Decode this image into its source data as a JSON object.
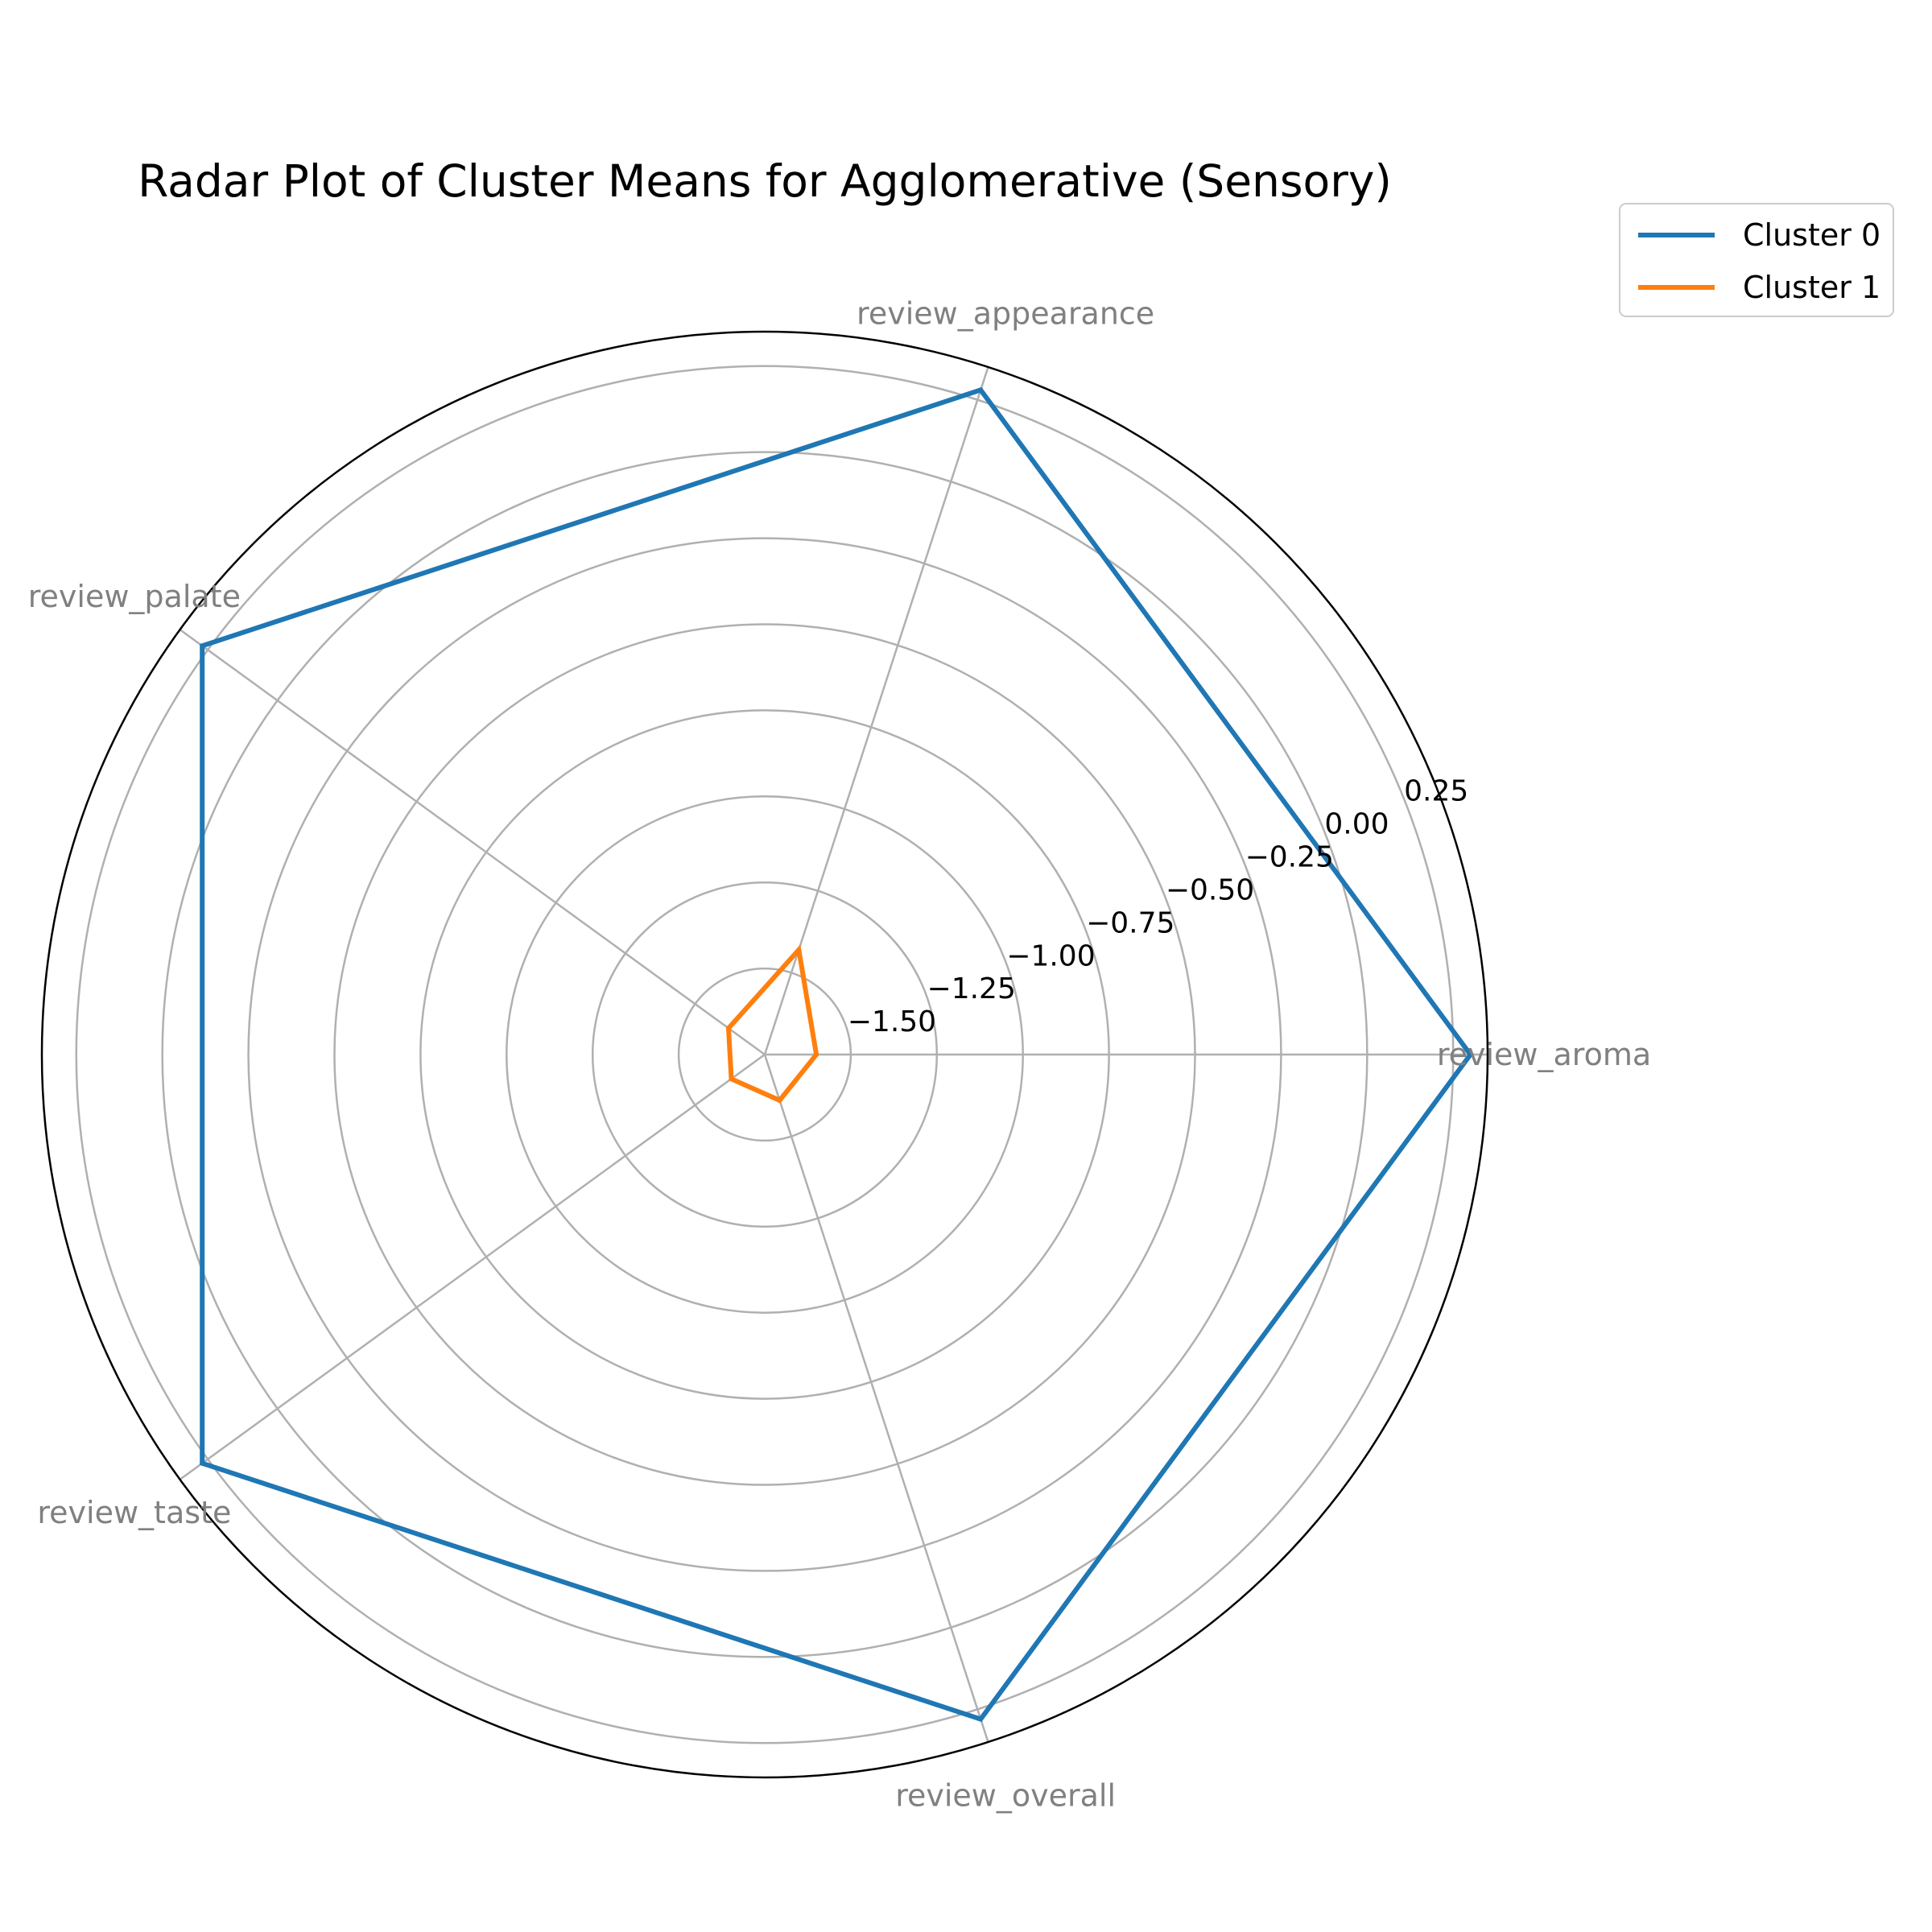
{
  "chart_data": {
    "type": "radar",
    "title": "Radar Plot of Cluster Means for Agglomerative (Sensory)",
    "categories": [
      "review_aroma",
      "review_appearance",
      "review_palate",
      "review_taste",
      "review_overall"
    ],
    "radial_ticks": [
      -1.5,
      -1.25,
      -1.0,
      -0.75,
      -0.5,
      -0.25,
      0.0,
      0.25
    ],
    "radial_tick_labels": [
      "−1.50",
      "−1.25",
      "−1.00",
      "−0.75",
      "−0.50",
      "−0.25",
      "0.00",
      "0.25"
    ],
    "rlim": [
      -1.75,
      0.35
    ],
    "grid": true,
    "legend_position": "top-right",
    "series": [
      {
        "name": "Cluster 0",
        "color": "#1f77b4",
        "values": [
          0.3,
          0.28,
          0.27,
          0.27,
          0.28
        ]
      },
      {
        "name": "Cluster 1",
        "color": "#ff7f0e",
        "values": [
          -1.6,
          -1.43,
          -1.62,
          -1.63,
          -1.61
        ]
      }
    ]
  }
}
